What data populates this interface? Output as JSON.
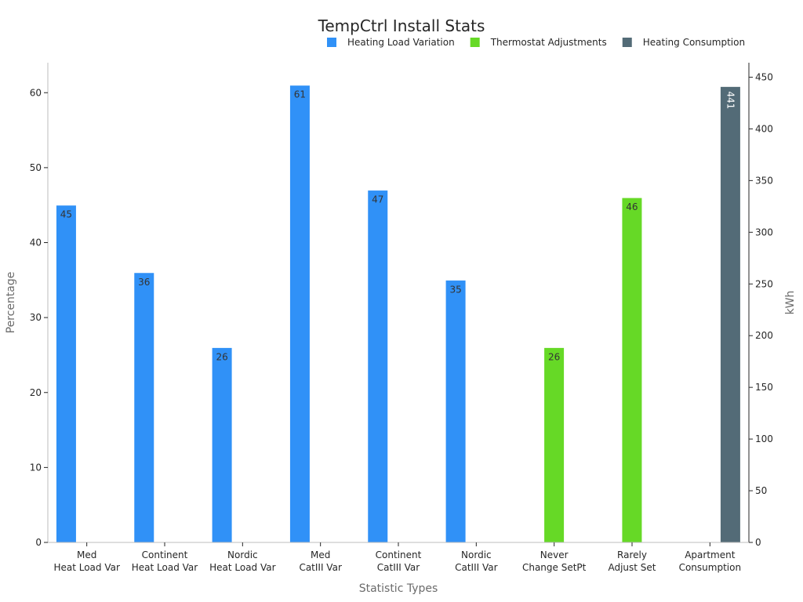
{
  "chart_data": {
    "type": "bar",
    "title": "TempCtrl Install Stats",
    "xlabel": "Statistic Types",
    "ylabel": "Percentage",
    "y2label": "kWh",
    "ylim": [
      0,
      64
    ],
    "y2lim": [
      0,
      464
    ],
    "yticks": [
      0,
      10,
      20,
      30,
      40,
      50,
      60
    ],
    "y2ticks": [
      0,
      50,
      100,
      150,
      200,
      250,
      300,
      350,
      400,
      450
    ],
    "categories": [
      [
        "Med",
        "Heat Load Var"
      ],
      [
        "Continent",
        "Heat Load Var"
      ],
      [
        "Nordic",
        "Heat Load Var"
      ],
      [
        "Med",
        "CatIII Var"
      ],
      [
        "Continent",
        "CatIII Var"
      ],
      [
        "Nordic",
        "CatIII Var"
      ],
      [
        "Never",
        "Change SetPt"
      ],
      [
        "Rarely",
        "Adjust Set"
      ],
      [
        "Apartment",
        "Consumption"
      ]
    ],
    "legend_position": "top-right",
    "series": [
      {
        "name": "Heating Load Variation",
        "color": "#3091f7",
        "axis": "left",
        "values": [
          45,
          36,
          26,
          61,
          47,
          35,
          null,
          null,
          null
        ]
      },
      {
        "name": "Thermostat Adjustments",
        "color": "#66d926",
        "axis": "left",
        "values": [
          null,
          null,
          null,
          null,
          null,
          null,
          26,
          46,
          null
        ]
      },
      {
        "name": "Heating Consumption",
        "color": "#536b77",
        "axis": "right",
        "values": [
          null,
          null,
          null,
          null,
          null,
          null,
          null,
          null,
          441
        ]
      }
    ],
    "grid": false
  }
}
